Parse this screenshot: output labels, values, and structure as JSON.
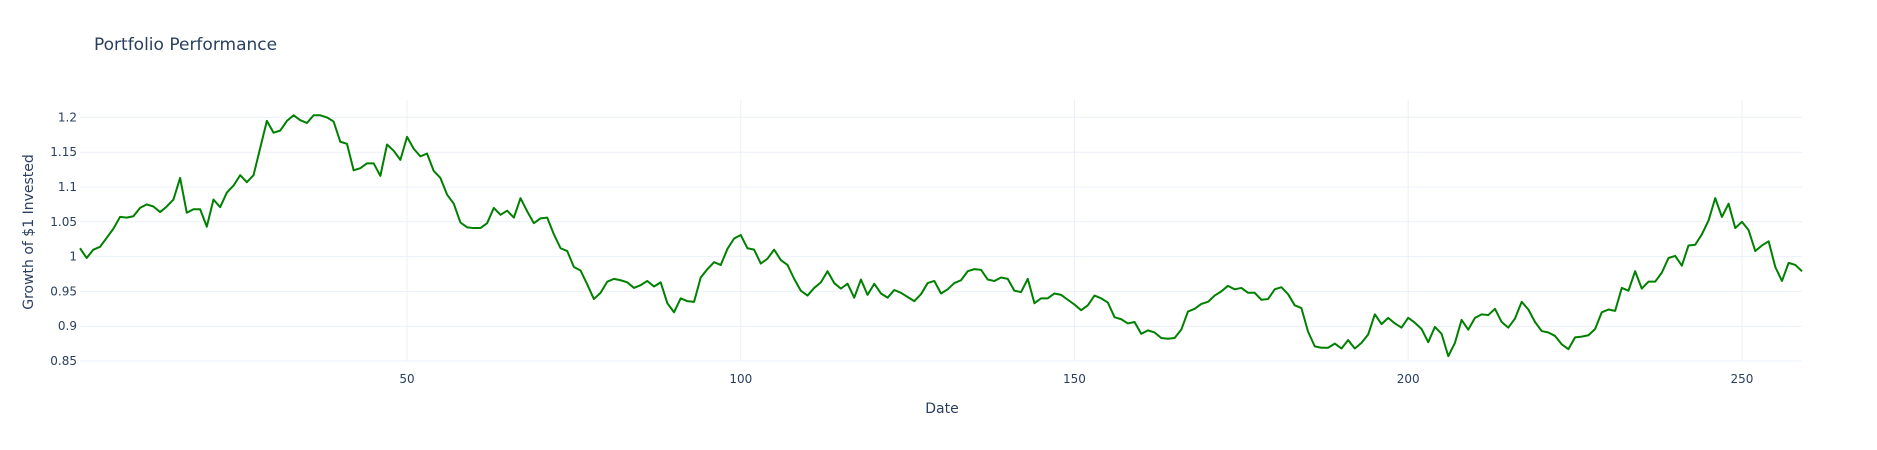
{
  "chart_data": {
    "type": "line",
    "title": "Portfolio Performance",
    "xlabel": "Date",
    "ylabel": "Growth of $1 Invested",
    "xlim": [
      1,
      259
    ],
    "ylim": [
      0.85,
      1.225
    ],
    "x_ticks": [
      50,
      100,
      150,
      200,
      250
    ],
    "y_ticks": [
      0.85,
      0.9,
      0.95,
      1,
      1.05,
      1.1,
      1.15,
      1.2
    ],
    "y_tick_labels": [
      "0.85",
      "0.9",
      "0.95",
      "1",
      "1.05",
      "1.1",
      "1.15",
      "1.2"
    ],
    "grid": true,
    "line_color": "#008000",
    "series": [
      {
        "x_start": 1,
        "values": [
          1.012,
          0.998,
          1.01,
          1.014,
          1.027,
          1.04,
          1.057,
          1.056,
          1.058,
          1.07,
          1.075,
          1.072,
          1.064,
          1.072,
          1.082,
          1.113,
          1.063,
          1.068,
          1.068,
          1.043,
          1.082,
          1.071,
          1.092,
          1.102,
          1.117,
          1.107,
          1.117,
          1.156,
          1.195,
          1.178,
          1.181,
          1.195,
          1.203,
          1.196,
          1.192,
          1.203,
          1.203,
          1.2,
          1.194,
          1.165,
          1.162,
          1.124,
          1.127,
          1.134,
          1.134,
          1.116,
          1.161,
          1.152,
          1.139,
          1.172,
          1.155,
          1.144,
          1.148,
          1.123,
          1.113,
          1.089,
          1.076,
          1.049,
          1.042,
          1.041,
          1.041,
          1.048,
          1.07,
          1.06,
          1.066,
          1.056,
          1.084,
          1.065,
          1.048,
          1.055,
          1.056,
          1.032,
          1.012,
          1.008,
          0.985,
          0.98,
          0.96,
          0.939,
          0.948,
          0.964,
          0.968,
          0.966,
          0.963,
          0.955,
          0.959,
          0.965,
          0.957,
          0.963,
          0.933,
          0.92,
          0.94,
          0.936,
          0.935,
          0.97,
          0.982,
          0.992,
          0.988,
          1.011,
          1.026,
          1.031,
          1.012,
          1.01,
          0.99,
          0.997,
          1.01,
          0.995,
          0.988,
          0.968,
          0.951,
          0.944,
          0.955,
          0.963,
          0.979,
          0.962,
          0.954,
          0.961,
          0.941,
          0.967,
          0.945,
          0.961,
          0.947,
          0.941,
          0.952,
          0.948,
          0.942,
          0.936,
          0.946,
          0.962,
          0.965,
          0.947,
          0.953,
          0.962,
          0.966,
          0.979,
          0.982,
          0.981,
          0.967,
          0.965,
          0.97,
          0.968,
          0.951,
          0.949,
          0.968,
          0.933,
          0.94,
          0.94,
          0.947,
          0.945,
          0.938,
          0.931,
          0.923,
          0.93,
          0.944,
          0.94,
          0.934,
          0.913,
          0.91,
          0.904,
          0.906,
          0.889,
          0.894,
          0.891,
          0.883,
          0.882,
          0.883,
          0.895,
          0.921,
          0.925,
          0.932,
          0.935,
          0.944,
          0.95,
          0.958,
          0.953,
          0.955,
          0.948,
          0.948,
          0.938,
          0.939,
          0.953,
          0.956,
          0.946,
          0.93,
          0.926,
          0.892,
          0.871,
          0.869,
          0.869,
          0.875,
          0.868,
          0.88,
          0.868,
          0.876,
          0.888,
          0.917,
          0.903,
          0.912,
          0.904,
          0.898,
          0.912,
          0.905,
          0.896,
          0.877,
          0.899,
          0.889,
          0.857,
          0.876,
          0.909,
          0.895,
          0.912,
          0.917,
          0.916,
          0.925,
          0.906,
          0.898,
          0.911,
          0.935,
          0.924,
          0.906,
          0.893,
          0.891,
          0.886,
          0.874,
          0.867,
          0.884,
          0.885,
          0.887,
          0.896,
          0.92,
          0.924,
          0.922,
          0.955,
          0.951,
          0.979,
          0.954,
          0.964,
          0.964,
          0.977,
          0.998,
          1.001,
          0.987,
          1.016,
          1.017,
          1.032,
          1.052,
          1.084,
          1.057,
          1.076,
          1.041,
          1.05,
          1.038,
          1.008,
          1.016,
          1.022,
          0.985,
          0.965,
          0.991,
          0.988,
          0.979
        ]
      }
    ]
  }
}
